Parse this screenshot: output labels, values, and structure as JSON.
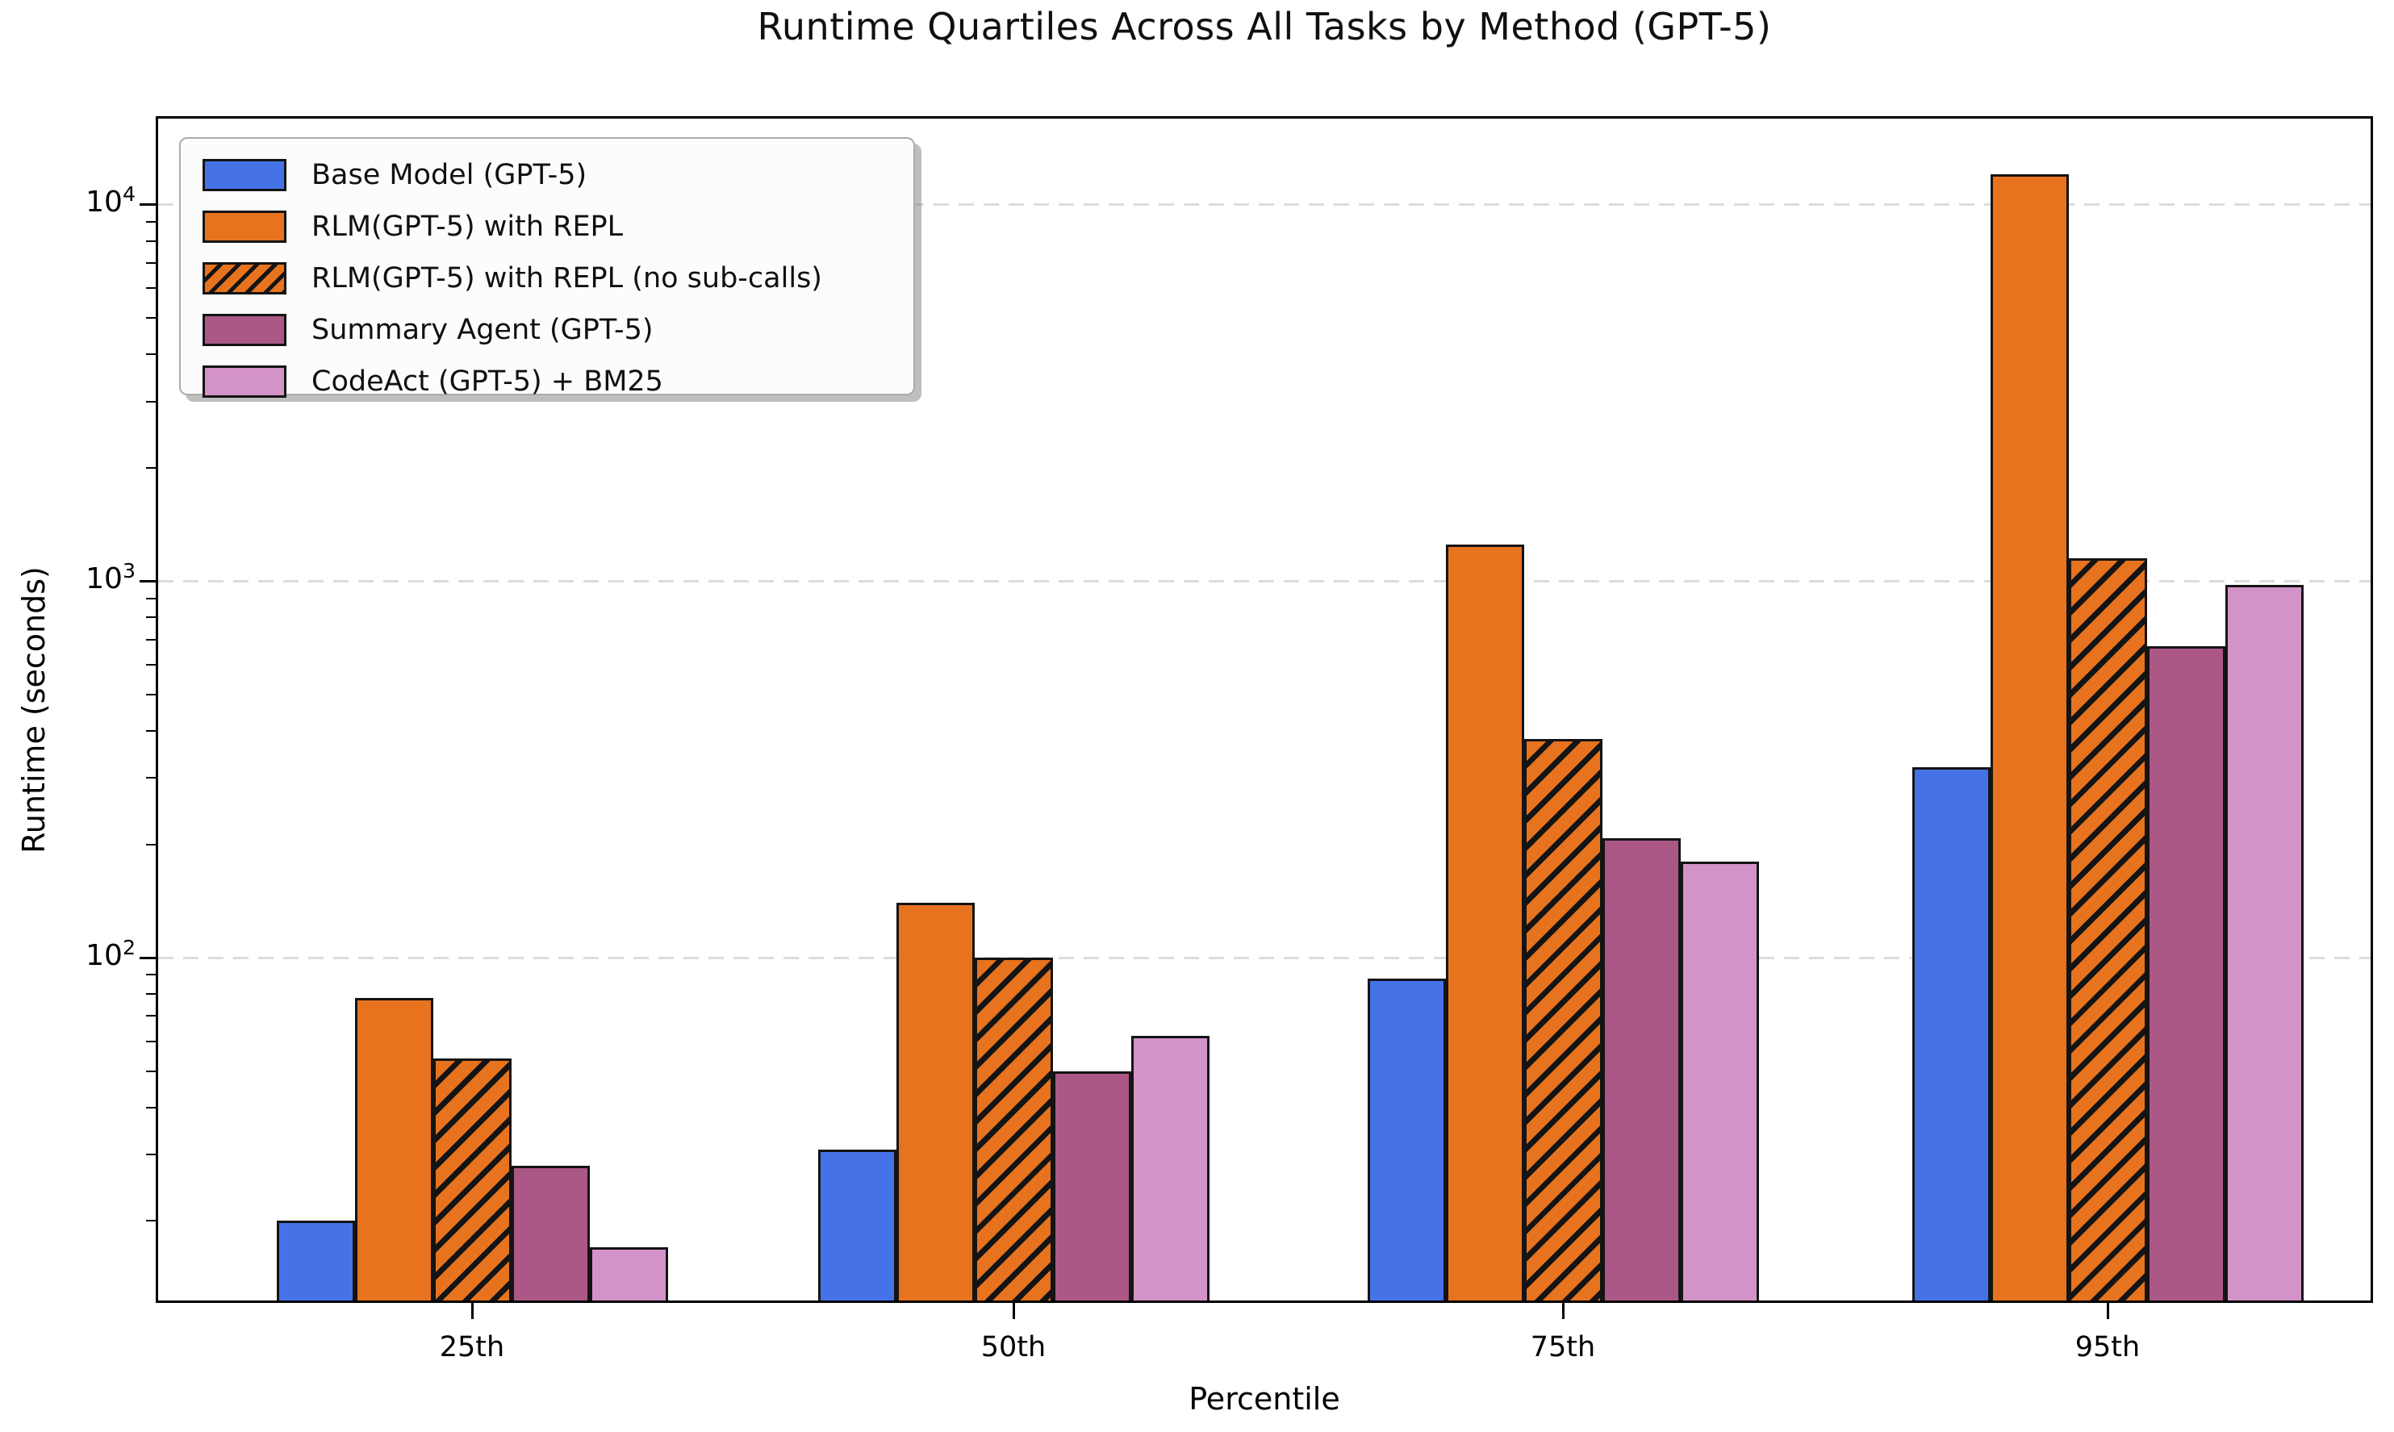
{
  "chart_data": {
    "type": "bar",
    "title": "Runtime Quartiles Across All Tasks by Method (GPT-5)",
    "xlabel": "Percentile",
    "ylabel": "Runtime (seconds)",
    "yscale": "log",
    "ylim": [
      12.3,
      16900
    ],
    "y_ticks": [
      {
        "base": "10",
        "exp": "2",
        "value": 100
      },
      {
        "base": "10",
        "exp": "3",
        "value": 1000
      },
      {
        "base": "10",
        "exp": "4",
        "value": 10000
      }
    ],
    "grid": "horizontal-dashed-major",
    "legend_position": "upper left",
    "categories": [
      "25th",
      "50th",
      "75th",
      "95th"
    ],
    "series": [
      {
        "name": "Base Model (GPT-5)",
        "color": "#4573E7",
        "hatch": false,
        "values": [
          20,
          31,
          88,
          320
        ]
      },
      {
        "name": "RLM(GPT-5) with REPL",
        "color": "#E7731F",
        "hatch": false,
        "values": [
          78,
          140,
          1250,
          12000
        ]
      },
      {
        "name": "RLM(GPT-5) with REPL (no sub-calls)",
        "color": "#E7731F",
        "hatch": true,
        "values": [
          54,
          100,
          380,
          1150
        ]
      },
      {
        "name": "Summary Agent (GPT-5)",
        "color": "#AB5886",
        "hatch": false,
        "values": [
          28,
          50,
          208,
          670
        ]
      },
      {
        "name": "CodeAct (GPT-5) + BM25",
        "color": "#D493C8",
        "hatch": false,
        "values": [
          17,
          62,
          180,
          975
        ]
      }
    ],
    "edge_color": "#141414",
    "grid_color": "#dcdcdc"
  }
}
